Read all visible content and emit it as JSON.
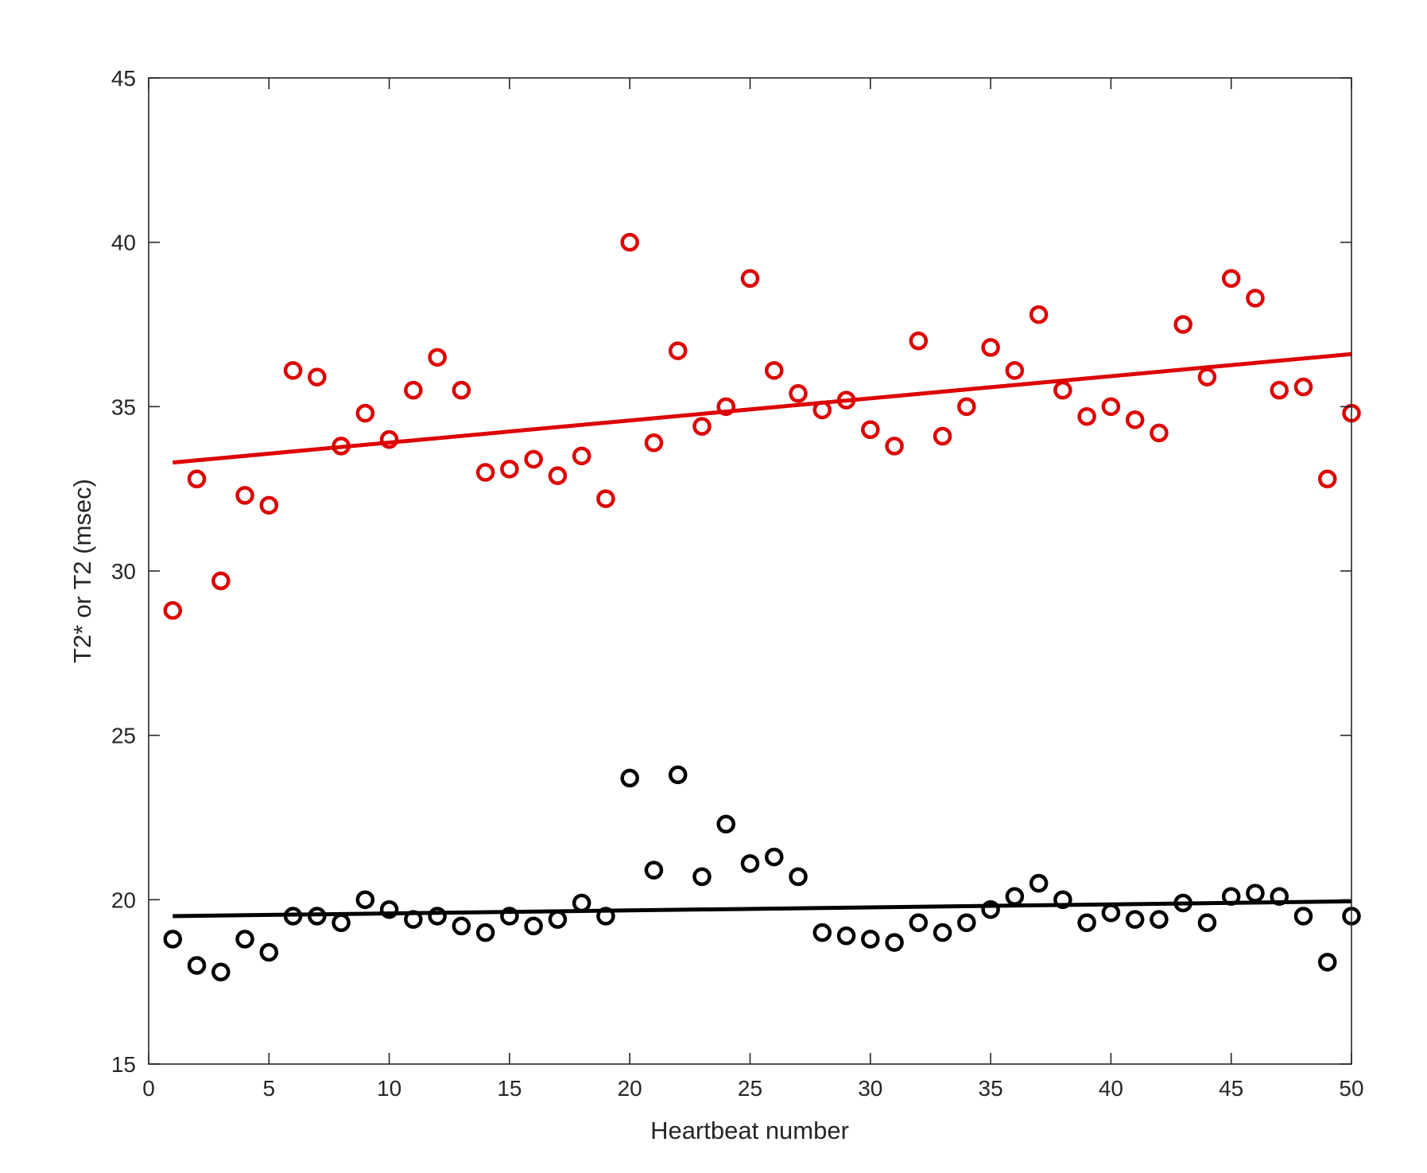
{
  "chart_data": {
    "type": "scatter",
    "title": "",
    "xlabel": "Heartbeat number",
    "ylabel": "T2* or T2 (msec)",
    "xlim": [
      0,
      50
    ],
    "ylim": [
      15,
      45
    ],
    "xticks": [
      0,
      5,
      10,
      15,
      20,
      25,
      30,
      35,
      40,
      45,
      50
    ],
    "yticks": [
      15,
      20,
      25,
      30,
      35,
      40,
      45
    ],
    "xtick_labels": [
      "0",
      "5",
      "10",
      "15",
      "20",
      "25",
      "30",
      "35",
      "40",
      "45",
      "50"
    ],
    "ytick_labels": [
      "15",
      "20",
      "25",
      "30",
      "35",
      "40",
      "45"
    ],
    "grid": false,
    "legend": "none",
    "series": [
      {
        "color": "#dd0000",
        "marker": "open-circle",
        "x": [
          1,
          2,
          3,
          4,
          5,
          6,
          7,
          8,
          9,
          10,
          11,
          12,
          13,
          14,
          15,
          16,
          17,
          18,
          19,
          20,
          21,
          22,
          23,
          24,
          25,
          26,
          27,
          28,
          29,
          30,
          31,
          32,
          33,
          34,
          35,
          36,
          37,
          38,
          39,
          40,
          41,
          42,
          43,
          44,
          45,
          46,
          47,
          48,
          49,
          50
        ],
        "values": [
          28.8,
          32.8,
          29.7,
          32.3,
          32.0,
          36.1,
          35.9,
          33.8,
          34.8,
          34.0,
          35.5,
          36.5,
          35.5,
          33.0,
          33.1,
          33.4,
          32.9,
          33.5,
          32.2,
          40.0,
          33.9,
          36.7,
          34.4,
          35.0,
          38.9,
          36.1,
          35.4,
          34.9,
          35.2,
          34.3,
          33.8,
          37.0,
          34.1,
          35.0,
          36.8,
          36.1,
          37.8,
          35.5,
          34.7,
          35.0,
          34.6,
          34.2,
          37.5,
          35.9,
          38.9,
          38.3,
          35.5,
          35.6,
          32.8,
          34.8
        ],
        "trend": {
          "x": [
            1,
            50
          ],
          "y": [
            33.3,
            36.6
          ]
        }
      },
      {
        "color": "#000000",
        "marker": "open-circle",
        "x": [
          1,
          2,
          3,
          4,
          5,
          6,
          7,
          8,
          9,
          10,
          11,
          12,
          13,
          14,
          15,
          16,
          17,
          18,
          19,
          20,
          21,
          22,
          23,
          24,
          25,
          26,
          27,
          28,
          29,
          30,
          31,
          32,
          33,
          34,
          35,
          36,
          37,
          38,
          39,
          40,
          41,
          42,
          43,
          44,
          45,
          46,
          47,
          48,
          49,
          50
        ],
        "values": [
          18.8,
          18.0,
          17.8,
          18.8,
          18.4,
          19.5,
          19.5,
          19.3,
          20.0,
          19.7,
          19.4,
          19.5,
          19.2,
          19.0,
          19.5,
          19.2,
          19.4,
          19.9,
          19.5,
          23.7,
          20.9,
          23.8,
          20.7,
          22.3,
          21.1,
          21.3,
          20.7,
          19.0,
          18.9,
          18.8,
          18.7,
          19.3,
          19.0,
          19.3,
          19.7,
          20.1,
          20.5,
          20.0,
          19.3,
          19.6,
          19.4,
          19.4,
          19.9,
          19.3,
          20.1,
          20.2,
          20.1,
          19.5,
          18.1,
          19.5
        ],
        "trend": {
          "x": [
            1,
            50
          ],
          "y": [
            19.5,
            19.95
          ]
        }
      }
    ]
  }
}
